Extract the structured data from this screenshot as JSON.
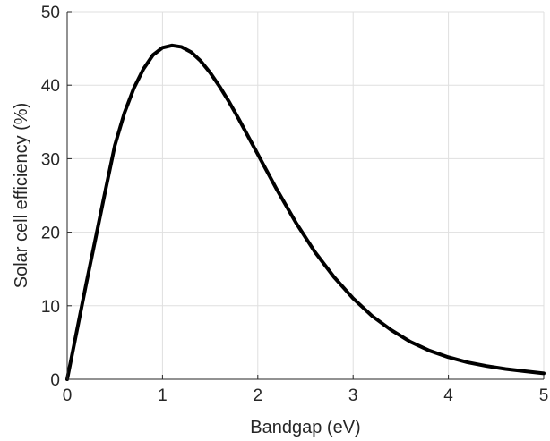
{
  "chart_data": {
    "type": "line",
    "title": "",
    "xlabel": "Bandgap (eV)",
    "ylabel": "Solar cell efficiency (%)",
    "xlim": [
      0,
      5
    ],
    "ylim": [
      0,
      50
    ],
    "x_ticks": [
      0,
      1,
      2,
      3,
      4,
      5
    ],
    "y_ticks": [
      0,
      10,
      20,
      30,
      40,
      50
    ],
    "grid": true,
    "legend": "none",
    "series": [
      {
        "color": "#000000",
        "x": [
          0,
          0.1,
          0.2,
          0.3,
          0.4,
          0.5,
          0.6,
          0.7,
          0.8,
          0.9,
          1.0,
          1.1,
          1.2,
          1.3,
          1.4,
          1.5,
          1.6,
          1.7,
          1.8,
          1.9,
          2.0,
          2.2,
          2.4,
          2.6,
          2.8,
          3.0,
          3.2,
          3.4,
          3.6,
          3.8,
          4.0,
          4.2,
          4.4,
          4.6,
          4.8,
          5.0
        ],
        "y": [
          0,
          6.5,
          13,
          19.3,
          25.6,
          31.8,
          36.2,
          39.6,
          42.2,
          44.1,
          45.1,
          45.4,
          45.2,
          44.5,
          43.3,
          41.7,
          39.8,
          37.7,
          35.4,
          33.0,
          30.6,
          25.8,
          21.3,
          17.3,
          13.9,
          11.0,
          8.6,
          6.7,
          5.1,
          3.9,
          3.0,
          2.3,
          1.8,
          1.4,
          1.1,
          0.8
        ]
      }
    ]
  }
}
